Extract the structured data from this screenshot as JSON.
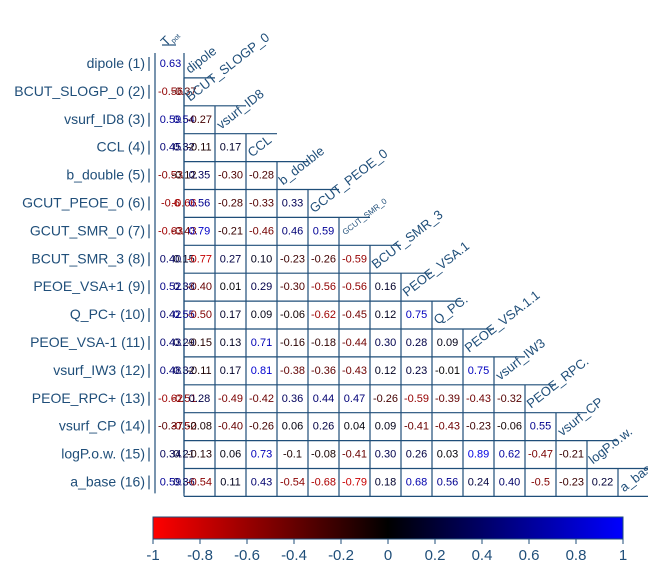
{
  "chart_data": {
    "type": "heatmap",
    "title": "",
    "target_label": "T",
    "target_label_subscript": "pot",
    "variables": [
      {
        "row_label": "dipole (1)",
        "col_label": "dipole",
        "target_corr": "0.63"
      },
      {
        "row_label": "BCUT_SLOGP_0 (2)",
        "col_label": "BCUT_SLOGP_0",
        "target_corr": "-0.56"
      },
      {
        "row_label": "vsurf_ID8 (3)",
        "col_label": "vsurf_ID8",
        "target_corr": "0.59"
      },
      {
        "row_label": "CCL (4)",
        "col_label": "CCL",
        "target_corr": "0.45"
      },
      {
        "row_label": "b_double (5)",
        "col_label": "b_double",
        "target_corr": "-0.53"
      },
      {
        "row_label": "GCUT_PEOE_0 (6)",
        "col_label": "GCUT_PEOE_0",
        "target_corr": "-0.6"
      },
      {
        "row_label": "GCUT_SMR_0 (7)",
        "col_label": "GCUT_SMR_0",
        "target_corr": "-0.63"
      },
      {
        "row_label": "BCUT_SMR_3 (8)",
        "col_label": "BCUT_SMR_3",
        "target_corr": "0.40"
      },
      {
        "row_label": "PEOE_VSA+1 (9)",
        "col_label": "PEOE_VSA.1",
        "target_corr": "0.52"
      },
      {
        "row_label": "Q_PC+ (10)",
        "col_label": "Q_PC.",
        "target_corr": "0.42"
      },
      {
        "row_label": "PEOE_VSA-1 (11)",
        "col_label": "PEOE_VSA.1.1",
        "target_corr": "0.43"
      },
      {
        "row_label": "vsurf_IW3 (12)",
        "col_label": "vsurf_IW3",
        "target_corr": "0.48"
      },
      {
        "row_label": "PEOE_RPC+ (13)",
        "col_label": "PEOE_RPC.",
        "target_corr": "-0.62"
      },
      {
        "row_label": "vsurf_CP (14)",
        "col_label": "vsurf_CP",
        "target_corr": "-0.37"
      },
      {
        "row_label": "logP.o.w. (15)",
        "col_label": "logP.o.w.",
        "target_corr": "0.34"
      },
      {
        "row_label": "a_base (16)",
        "col_label": "a_base",
        "target_corr": "0.59"
      }
    ],
    "lower_triangle": [
      [],
      [
        "-0.37"
      ],
      [
        "0.54",
        "-0.27"
      ],
      [
        "0.32",
        "-0.11",
        "0.17"
      ],
      [
        "-0.12",
        "0.35",
        "-0.30",
        "-0.28"
      ],
      [
        "-0.66",
        "0.56",
        "-0.28",
        "-0.33",
        "0.33"
      ],
      [
        "-0.43",
        "0.79",
        "-0.21",
        "-0.46",
        "0.46",
        "0.59"
      ],
      [
        "0.15",
        "-0.77",
        "0.27",
        "0.10",
        "-0.23",
        "-0.26",
        "-0.59"
      ],
      [
        "0.38",
        "-0.40",
        "0.01",
        "0.29",
        "-0.30",
        "-0.56",
        "-0.56",
        "0.16"
      ],
      [
        "0.55",
        "-0.50",
        "0.17",
        "0.09",
        "-0.06",
        "-0.62",
        "-0.45",
        "0.12",
        "0.75"
      ],
      [
        "0.29",
        "-0.15",
        "0.13",
        "0.71",
        "-0.16",
        "-0.18",
        "-0.44",
        "0.30",
        "0.28",
        "0.09"
      ],
      [
        "0.32",
        "-0.11",
        "0.17",
        "0.81",
        "-0.38",
        "-0.36",
        "-0.43",
        "0.12",
        "0.23",
        "-0.01",
        "0.75"
      ],
      [
        "-0.51",
        "0.28",
        "-0.49",
        "-0.42",
        "0.36",
        "0.44",
        "0.47",
        "-0.26",
        "-0.59",
        "-0.39",
        "-0.43",
        "-0.32"
      ],
      [
        "-0.52",
        "-0.08",
        "-0.40",
        "-0.26",
        "0.06",
        "0.26",
        "0.04",
        "0.09",
        "-0.41",
        "-0.43",
        "-0.23",
        "-0.06",
        "0.55"
      ],
      [
        "0.21",
        "-0.13",
        "0.06",
        "0.73",
        "-0.1",
        "-0.08",
        "-0.41",
        "0.30",
        "0.26",
        "0.03",
        "0.89",
        "0.62",
        "-0.47",
        "-0.21"
      ],
      [
        "0.36",
        "-0.54",
        "0.11",
        "0.43",
        "-0.54",
        "-0.68",
        "-0.79",
        "0.18",
        "0.68",
        "0.56",
        "0.24",
        "0.40",
        "-0.5",
        "-0.23",
        "0.22"
      ]
    ],
    "colorbar": {
      "range": [
        -1,
        1
      ],
      "ticks": [
        "-1",
        "-0.8",
        "-0.6",
        "-0.4",
        "-0.2",
        "0",
        "0.2",
        "0.4",
        "0.6",
        "0.8",
        "1"
      ],
      "colors": {
        "negative": "#ff0000",
        "zero": "#000000",
        "positive": "#0000ff"
      }
    },
    "colors": {
      "grid": "#1f4e79",
      "label": "#1f4e79"
    }
  }
}
